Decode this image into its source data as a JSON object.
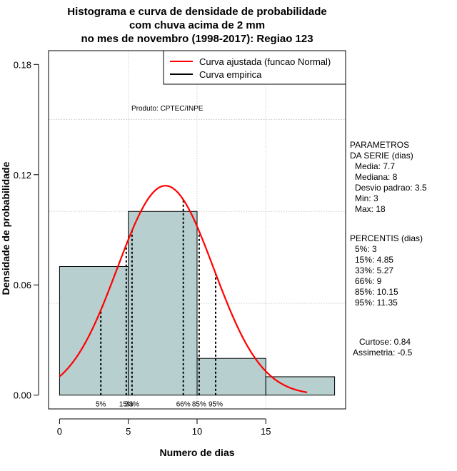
{
  "chart_data": {
    "type": "histogram",
    "title": [
      "Histograma e curva de densidade de probabilidade",
      "com chuva acima de 2 mm",
      "no mes de novembro (1998-2017): Regiao 123"
    ],
    "xlabel": "Numero de dias",
    "ylabel": "Densidade de probabilidade",
    "xlim": [
      -0.8,
      20.8
    ],
    "ylim": [
      -0.0075,
      0.1875
    ],
    "xticks": [
      0,
      5,
      10,
      15
    ],
    "xtick_labels": [
      "0",
      "5",
      "10",
      "15"
    ],
    "yticks": [
      0.0,
      0.06,
      0.12,
      0.18
    ],
    "ytick_labels": [
      "0.00",
      "0.06",
      "0.12",
      "0.18"
    ],
    "grid_x": [
      5,
      10,
      15
    ],
    "grid_y": [
      0.05,
      0.1,
      0.15
    ],
    "bins": [
      {
        "x0": 0,
        "x1": 5,
        "density": 0.07
      },
      {
        "x0": 5,
        "x1": 10,
        "density": 0.1
      },
      {
        "x0": 10,
        "x1": 15,
        "density": 0.02
      },
      {
        "x0": 15,
        "x1": 20,
        "density": 0.01
      }
    ],
    "bar_color": "#b7cfcf",
    "normal_fit": {
      "mean": 7.7,
      "sd": 3.5,
      "x_range": [
        0,
        18
      ],
      "color": "#ff0000"
    },
    "percentile_lines": [
      {
        "label": "5%",
        "x": 3
      },
      {
        "label": "15%",
        "x": 4.85
      },
      {
        "label": "33%",
        "x": 5.27
      },
      {
        "label": "66%",
        "x": 9
      },
      {
        "label": "85%",
        "x": 10.15
      },
      {
        "label": "95%",
        "x": 11.35
      }
    ],
    "legend": {
      "position": "top-right",
      "entries": [
        {
          "label": "Curva ajustada (funcao Normal)",
          "color": "#ff0000"
        },
        {
          "label": "Curva empirica",
          "color": "#000000"
        }
      ]
    },
    "annotation": "Produto: CPTEC/INPE",
    "parametros": {
      "heading": [
        "PARAMETROS",
        "DA SERIE (dias)"
      ],
      "items": [
        "Media: 7.7",
        "Mediana: 8",
        "Desvio padrao: 3.5",
        "Min: 3",
        "Max: 18"
      ]
    },
    "percentis": {
      "heading": "PERCENTIS (dias)",
      "items": [
        "5%: 3",
        "15%: 4.85",
        "33%: 5.27",
        "66%: 9",
        "85%: 10.15",
        "95%: 11.35"
      ]
    },
    "shape": {
      "items": [
        "Curtose: 0.84",
        "Assimetria: -0.5"
      ]
    }
  }
}
